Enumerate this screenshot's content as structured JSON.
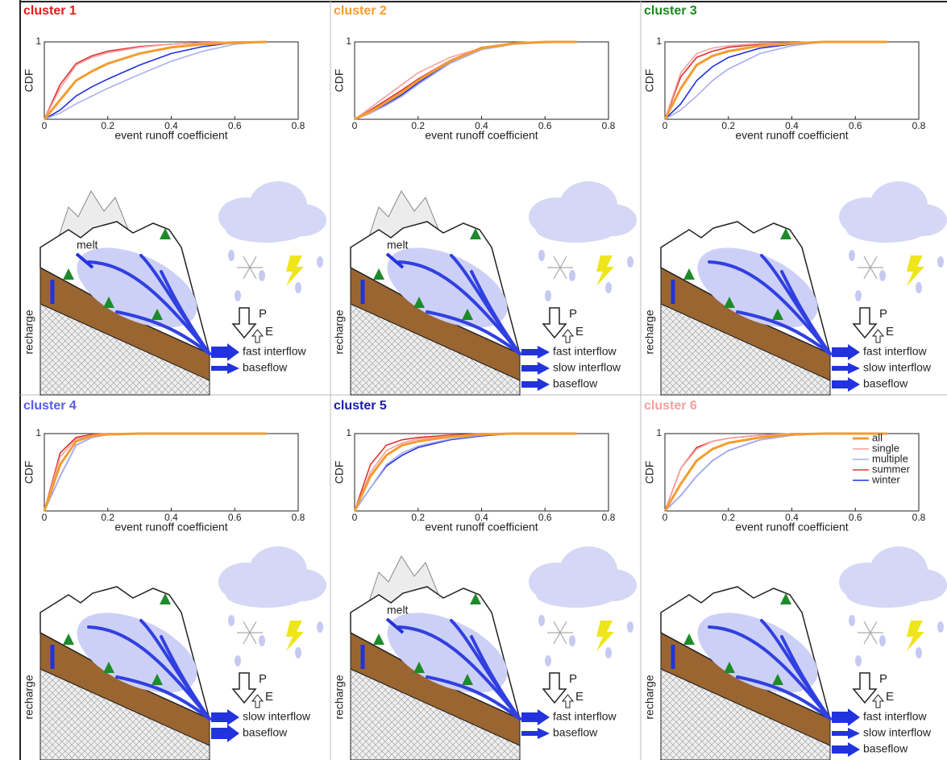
{
  "chart_data": [
    {
      "type": "line",
      "title": "cluster 1",
      "title_color": "#e31a1c",
      "xlabel": "event runoff coefficient",
      "ylabel": "CDF",
      "x": [
        0,
        0.05,
        0.1,
        0.15,
        0.2,
        0.3,
        0.4,
        0.5,
        0.6,
        0.7
      ],
      "series": [
        {
          "color": "#f39c30",
          "values": [
            0,
            0.25,
            0.5,
            0.62,
            0.72,
            0.85,
            0.93,
            0.97,
            0.99,
            1
          ]
        },
        {
          "color": "#f5a0a0",
          "values": [
            0,
            0.4,
            0.7,
            0.8,
            0.86,
            0.93,
            0.97,
            0.99,
            1,
            1
          ]
        },
        {
          "color": "#a8aef2",
          "values": [
            0,
            0.08,
            0.2,
            0.3,
            0.4,
            0.58,
            0.75,
            0.88,
            0.97,
            1
          ]
        },
        {
          "color": "#e03030",
          "values": [
            0,
            0.45,
            0.72,
            0.82,
            0.88,
            0.94,
            0.97,
            0.99,
            1,
            1
          ]
        },
        {
          "color": "#2030e0",
          "values": [
            0,
            0.12,
            0.3,
            0.42,
            0.52,
            0.7,
            0.85,
            0.94,
            0.99,
            1
          ]
        }
      ],
      "xlim": [
        0,
        0.8
      ],
      "ylim": [
        0,
        1
      ],
      "xticks": [
        0,
        0.2,
        0.4,
        0.6,
        0.8
      ],
      "yticks": [
        1
      ]
    },
    {
      "type": "line",
      "title": "cluster 2",
      "title_color": "#f39c30",
      "xlabel": "event runoff coefficient",
      "ylabel": "CDF",
      "x": [
        0,
        0.05,
        0.1,
        0.15,
        0.2,
        0.3,
        0.4,
        0.5,
        0.6,
        0.7
      ],
      "series": [
        {
          "color": "#f39c30",
          "values": [
            0,
            0.1,
            0.22,
            0.35,
            0.5,
            0.75,
            0.92,
            0.98,
            1,
            1
          ]
        },
        {
          "color": "#f5a0a0",
          "values": [
            0,
            0.15,
            0.3,
            0.45,
            0.6,
            0.8,
            0.92,
            0.97,
            1,
            1
          ]
        },
        {
          "color": "#a8aef2",
          "values": [
            0,
            0.08,
            0.18,
            0.3,
            0.45,
            0.72,
            0.9,
            0.97,
            0.99,
            1
          ]
        },
        {
          "color": "#e03030",
          "values": [
            0,
            0.12,
            0.25,
            0.38,
            0.52,
            0.76,
            0.93,
            0.98,
            1,
            1
          ]
        },
        {
          "color": "#2030e0",
          "values": [
            0,
            0.08,
            0.2,
            0.32,
            0.47,
            0.74,
            0.92,
            0.98,
            1,
            1
          ]
        }
      ],
      "xlim": [
        0,
        0.8
      ],
      "ylim": [
        0,
        1
      ],
      "xticks": [
        0,
        0.2,
        0.4,
        0.6,
        0.8
      ],
      "yticks": [
        1
      ]
    },
    {
      "type": "line",
      "title": "cluster 3",
      "title_color": "#1a8a1a",
      "xlabel": "event runoff coefficient",
      "ylabel": "CDF",
      "x": [
        0,
        0.05,
        0.1,
        0.15,
        0.2,
        0.3,
        0.4,
        0.5,
        0.6,
        0.7
      ],
      "series": [
        {
          "color": "#f39c30",
          "values": [
            0,
            0.4,
            0.7,
            0.82,
            0.88,
            0.95,
            0.98,
            1,
            1,
            1
          ]
        },
        {
          "color": "#f5a0a0",
          "values": [
            0,
            0.6,
            0.85,
            0.92,
            0.95,
            0.98,
            0.99,
            1,
            1,
            1
          ]
        },
        {
          "color": "#a8aef2",
          "values": [
            0,
            0.12,
            0.3,
            0.5,
            0.65,
            0.85,
            0.95,
            1,
            1,
            1
          ]
        },
        {
          "color": "#e03030",
          "values": [
            0,
            0.55,
            0.8,
            0.88,
            0.93,
            0.97,
            0.99,
            1,
            1,
            1
          ]
        },
        {
          "color": "#2030e0",
          "values": [
            0,
            0.2,
            0.5,
            0.68,
            0.8,
            0.92,
            0.97,
            1,
            1,
            1
          ]
        }
      ],
      "xlim": [
        0,
        0.8
      ],
      "ylim": [
        0,
        1
      ],
      "xticks": [
        0,
        0.2,
        0.4,
        0.6,
        0.8
      ],
      "yticks": [
        1
      ]
    },
    {
      "type": "line",
      "title": "cluster 4",
      "title_color": "#5a5af0",
      "xlabel": "event runoff coefficient",
      "ylabel": "CDF",
      "x": [
        0,
        0.05,
        0.1,
        0.15,
        0.2,
        0.3,
        0.4,
        0.5,
        0.6,
        0.7
      ],
      "series": [
        {
          "color": "#f39c30",
          "values": [
            0,
            0.6,
            0.9,
            0.97,
            0.99,
            1,
            1,
            1,
            1,
            1
          ]
        },
        {
          "color": "#f5a0a0",
          "values": [
            0,
            0.7,
            0.93,
            0.98,
            1,
            1,
            1,
            1,
            1,
            1
          ]
        },
        {
          "color": "#a8aef2",
          "values": [
            0,
            0.45,
            0.85,
            0.95,
            0.99,
            1,
            1,
            1,
            1,
            1
          ]
        },
        {
          "color": "#e03030",
          "values": [
            0,
            0.75,
            0.95,
            0.99,
            1,
            1,
            1,
            1,
            1,
            1
          ]
        },
        {
          "color": "#2030e0",
          "values": [
            0,
            0.45,
            0.85,
            0.95,
            0.99,
            1,
            1,
            1,
            1,
            1
          ]
        }
      ],
      "xlim": [
        0,
        0.8
      ],
      "ylim": [
        0,
        1
      ],
      "xticks": [
        0,
        0.2,
        0.4,
        0.6,
        0.8
      ],
      "yticks": [
        1
      ]
    },
    {
      "type": "line",
      "title": "cluster 5",
      "title_color": "#1a1ab0",
      "xlabel": "event runoff coefficient",
      "ylabel": "CDF",
      "x": [
        0,
        0.05,
        0.1,
        0.15,
        0.2,
        0.3,
        0.4,
        0.5,
        0.6,
        0.7
      ],
      "series": [
        {
          "color": "#f39c30",
          "values": [
            0,
            0.45,
            0.72,
            0.85,
            0.9,
            0.96,
            0.99,
            1,
            1,
            1
          ]
        },
        {
          "color": "#f5a0a0",
          "values": [
            0,
            0.5,
            0.78,
            0.88,
            0.93,
            0.97,
            0.99,
            1,
            1,
            1
          ]
        },
        {
          "color": "#a8aef2",
          "values": [
            0,
            0.3,
            0.6,
            0.75,
            0.84,
            0.93,
            0.98,
            1,
            1,
            1
          ]
        },
        {
          "color": "#e03030",
          "values": [
            0,
            0.6,
            0.85,
            0.92,
            0.95,
            0.98,
            1,
            1,
            1,
            1
          ]
        },
        {
          "color": "#2030e0",
          "values": [
            0,
            0.3,
            0.58,
            0.72,
            0.82,
            0.92,
            0.97,
            1,
            1,
            1
          ]
        }
      ],
      "xlim": [
        0,
        0.8
      ],
      "ylim": [
        0,
        1
      ],
      "xticks": [
        0,
        0.2,
        0.4,
        0.6,
        0.8
      ],
      "yticks": [
        1
      ]
    },
    {
      "type": "line",
      "title": "cluster 6",
      "title_color": "#f5a0a0",
      "xlabel": "event runoff coefficient",
      "ylabel": "CDF",
      "x": [
        0,
        0.05,
        0.1,
        0.15,
        0.2,
        0.3,
        0.4,
        0.5,
        0.6,
        0.7
      ],
      "series": [
        {
          "name": "all",
          "color": "#f39c30",
          "values": [
            0,
            0.35,
            0.65,
            0.8,
            0.88,
            0.95,
            0.99,
            1,
            1,
            1
          ]
        },
        {
          "name": "single",
          "color": "#f5a0a0",
          "values": [
            0,
            0.55,
            0.8,
            0.9,
            0.94,
            0.98,
            1,
            1,
            1,
            1
          ]
        },
        {
          "name": "multiple",
          "color": "#a8aef2",
          "values": [
            0,
            0.2,
            0.45,
            0.65,
            0.78,
            0.92,
            0.98,
            1,
            1,
            1
          ]
        },
        {
          "name": "summer",
          "color": "#e03030",
          "values": [
            0,
            0.55,
            0.82,
            0.9,
            0.94,
            0.98,
            1,
            1,
            1,
            1
          ]
        },
        {
          "name": "winter",
          "color": "#2030e0",
          "values": [
            0,
            0.2,
            0.45,
            0.65,
            0.78,
            0.92,
            0.98,
            1,
            1,
            1
          ]
        }
      ],
      "xlim": [
        0,
        0.8
      ],
      "ylim": [
        0,
        1
      ],
      "xticks": [
        0,
        0.2,
        0.4,
        0.6,
        0.8
      ],
      "yticks": [
        1
      ],
      "legend": "upper right"
    }
  ],
  "diagrams": [
    {
      "melt": "melt",
      "recharge": "recharge",
      "P": "P",
      "E": "E",
      "flows": [
        "fast interflow",
        "baseflow"
      ]
    },
    {
      "melt": "melt",
      "recharge": "recharge",
      "P": "P",
      "E": "E",
      "flows": [
        "fast interflow",
        "slow interflow",
        "baseflow"
      ]
    },
    {
      "recharge": "recharge",
      "P": "P",
      "E": "E",
      "flows": [
        "fast interflow",
        "slow interflow",
        "baseflow"
      ]
    },
    {
      "recharge": "recharge",
      "P": "P",
      "E": "E",
      "flows": [
        "slow interflow",
        "baseflow"
      ]
    },
    {
      "melt": "melt",
      "recharge": "recharge",
      "P": "P",
      "E": "E",
      "flows": [
        "fast interflow",
        "baseflow"
      ]
    },
    {
      "recharge": "recharge",
      "P": "P",
      "E": "E",
      "flows": [
        "fast interflow",
        "slow interflow",
        "baseflow"
      ]
    }
  ]
}
